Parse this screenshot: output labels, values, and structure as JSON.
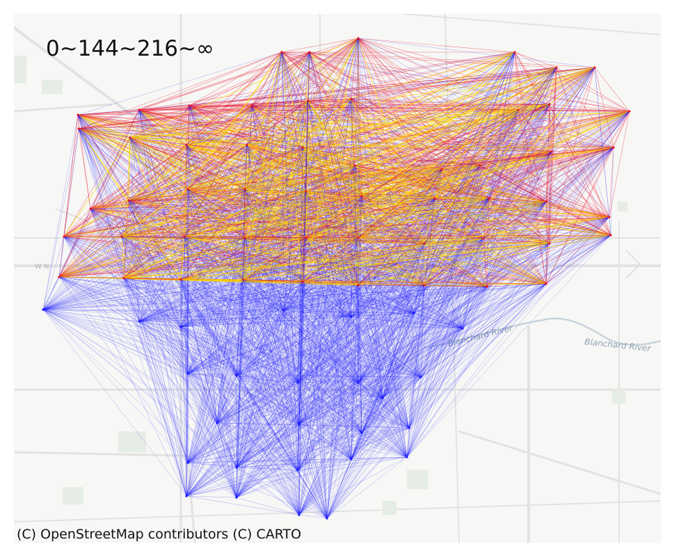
{
  "title": "0~144~216~∞",
  "attribution": "(C) OpenStreetMap contributors (C) CARTO",
  "basemap": {
    "river_labels": [
      "Blanchard River",
      "Blanchard River"
    ],
    "road_labels": [
      "W N"
    ]
  },
  "legend_classes": [
    {
      "range": "0~144",
      "color": "#1a1aff"
    },
    {
      "range": "144~216",
      "color": "#e8102a"
    },
    {
      "range": "216~∞",
      "color": "#ffd800"
    }
  ],
  "colors": {
    "low": "#1a1aff",
    "mid": "#e8102a",
    "high": "#ffd800",
    "basemap_bg": "#f7f7f5",
    "road": "#e2e2e2",
    "park": "#e6ece6",
    "water": "#c9d3dc"
  }
}
